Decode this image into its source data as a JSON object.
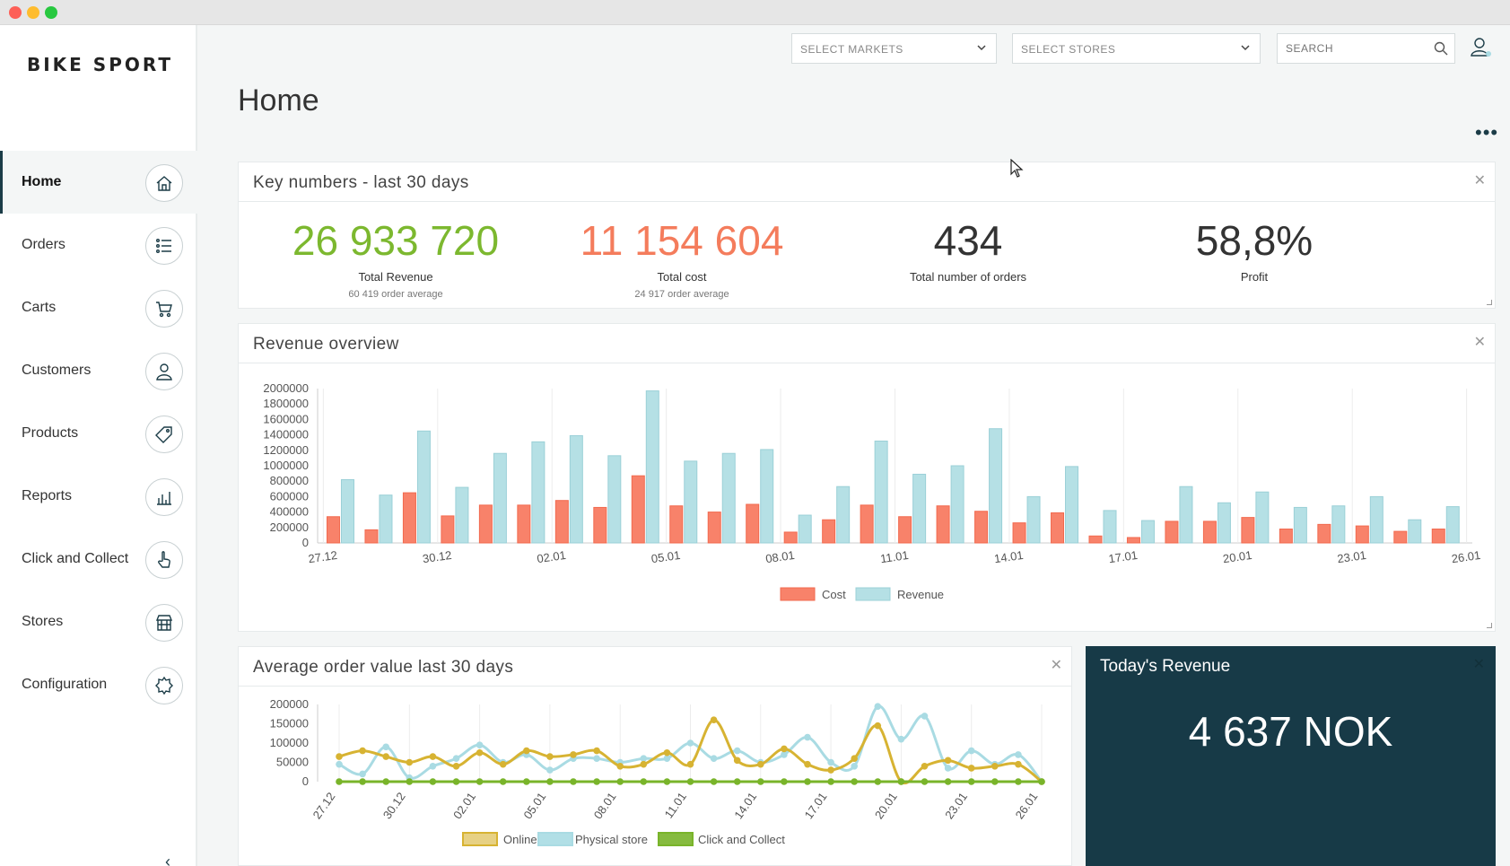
{
  "app": {
    "logo": "BIKE SPORT"
  },
  "nav": {
    "items": [
      {
        "label": "Home",
        "icon": "home-icon"
      },
      {
        "label": "Orders",
        "icon": "list-icon"
      },
      {
        "label": "Carts",
        "icon": "cart-icon"
      },
      {
        "label": "Customers",
        "icon": "user-icon"
      },
      {
        "label": "Products",
        "icon": "tag-icon"
      },
      {
        "label": "Reports",
        "icon": "bar-chart-icon"
      },
      {
        "label": "Click and Collect",
        "icon": "hand-pointer-icon"
      },
      {
        "label": "Stores",
        "icon": "store-icon"
      },
      {
        "label": "Configuration",
        "icon": "gear-icon"
      }
    ],
    "active": "Home"
  },
  "header": {
    "markets_placeholder": "SELECT MARKETS",
    "stores_placeholder": "SELECT STORES",
    "search_placeholder": "SEARCH",
    "page_title": "Home"
  },
  "kpis": {
    "title": "Key numbers - last 30 days",
    "items": [
      {
        "value": "26 933 720",
        "label": "Total Revenue",
        "sub": "60 419 order average",
        "color": "#7cb82f"
      },
      {
        "value": "11 154 604",
        "label": "Total cost",
        "sub": "24 917 order average",
        "color": "#f47c5c"
      },
      {
        "value": "434",
        "label": "Total number of orders",
        "sub": "",
        "color": "#333333"
      },
      {
        "value": "58,8%",
        "label": "Profit",
        "sub": "",
        "color": "#333333"
      }
    ]
  },
  "revenue_panel": {
    "title": "Revenue overview"
  },
  "aov_panel": {
    "title": "Average order value last 30 days"
  },
  "today": {
    "title": "Today's Revenue",
    "value": "4 637 NOK"
  },
  "colors": {
    "cost": "#f8826a",
    "revenue": "#b5e0e5",
    "online": "#d7b332",
    "physical": "#a9dbe3",
    "click_collect": "#79b42a",
    "dark": "#173a47"
  },
  "chart_data": [
    {
      "type": "bar",
      "title": "Revenue overview",
      "categories": [
        "27.12",
        "28.12",
        "29.12",
        "30.12",
        "31.12",
        "01.01",
        "02.01",
        "03.01",
        "04.01",
        "05.01",
        "06.01",
        "07.01",
        "08.01",
        "09.01",
        "10.01",
        "11.01",
        "12.01",
        "13.01",
        "14.01",
        "15.01",
        "16.01",
        "17.01",
        "18.01",
        "19.01",
        "20.01",
        "21.01",
        "22.01",
        "23.01",
        "24.01",
        "25.01"
      ],
      "tick_labels": [
        "27.12",
        "30.12",
        "02.01",
        "05.01",
        "08.01",
        "11.01",
        "14.01",
        "17.01",
        "20.01",
        "23.01",
        "26.01"
      ],
      "series": [
        {
          "name": "Cost",
          "values": [
            340000,
            170000,
            650000,
            350000,
            490000,
            490000,
            550000,
            460000,
            870000,
            480000,
            400000,
            500000,
            140000,
            300000,
            490000,
            340000,
            480000,
            410000,
            260000,
            390000,
            90000,
            70000,
            280000,
            280000,
            330000,
            180000,
            240000,
            220000,
            150000,
            180000
          ]
        },
        {
          "name": "Revenue",
          "values": [
            820000,
            620000,
            1450000,
            720000,
            1160000,
            1310000,
            1390000,
            1130000,
            1970000,
            1060000,
            1160000,
            1210000,
            360000,
            730000,
            1320000,
            890000,
            1000000,
            1480000,
            600000,
            990000,
            420000,
            290000,
            730000,
            520000,
            660000,
            460000,
            480000,
            600000,
            300000,
            470000
          ]
        }
      ],
      "ylim": [
        0,
        2000000
      ],
      "yticks": [
        0,
        200000,
        400000,
        600000,
        800000,
        1000000,
        1200000,
        1400000,
        1600000,
        1800000,
        2000000
      ],
      "legend": "bottom-center"
    },
    {
      "type": "line",
      "title": "Average order value last 30 days",
      "categories": [
        "27.12",
        "28.12",
        "29.12",
        "30.12",
        "31.12",
        "01.01",
        "02.01",
        "03.01",
        "04.01",
        "05.01",
        "06.01",
        "07.01",
        "08.01",
        "09.01",
        "10.01",
        "11.01",
        "12.01",
        "13.01",
        "14.01",
        "15.01",
        "16.01",
        "17.01",
        "18.01",
        "19.01",
        "20.01",
        "21.01",
        "22.01",
        "23.01",
        "24.01",
        "25.01",
        "26.01"
      ],
      "tick_labels": [
        "27.12",
        "30.12",
        "02.01",
        "05.01",
        "08.01",
        "11.01",
        "14.01",
        "17.01",
        "20.01",
        "23.01",
        "26.01"
      ],
      "series": [
        {
          "name": "Online",
          "values": [
            65000,
            80000,
            65000,
            50000,
            65000,
            40000,
            75000,
            45000,
            80000,
            65000,
            70000,
            80000,
            40000,
            45000,
            75000,
            45000,
            160000,
            55000,
            45000,
            85000,
            45000,
            30000,
            60000,
            145000,
            0,
            40000,
            55000,
            35000,
            40000,
            45000,
            0
          ]
        },
        {
          "name": "Physical store",
          "values": [
            45000,
            20000,
            90000,
            10000,
            40000,
            60000,
            95000,
            50000,
            70000,
            30000,
            60000,
            60000,
            50000,
            60000,
            60000,
            100000,
            60000,
            80000,
            50000,
            70000,
            115000,
            50000,
            40000,
            195000,
            110000,
            170000,
            35000,
            80000,
            45000,
            70000,
            0
          ]
        },
        {
          "name": "Click and Collect",
          "values": [
            0,
            0,
            0,
            0,
            0,
            0,
            0,
            0,
            0,
            0,
            0,
            0,
            0,
            0,
            0,
            0,
            0,
            0,
            0,
            0,
            0,
            0,
            0,
            0,
            0,
            0,
            0,
            0,
            0,
            0,
            0
          ]
        }
      ],
      "ylim": [
        0,
        200000
      ],
      "yticks": [
        0,
        50000,
        100000,
        150000,
        200000
      ],
      "legend": "bottom-center"
    }
  ]
}
